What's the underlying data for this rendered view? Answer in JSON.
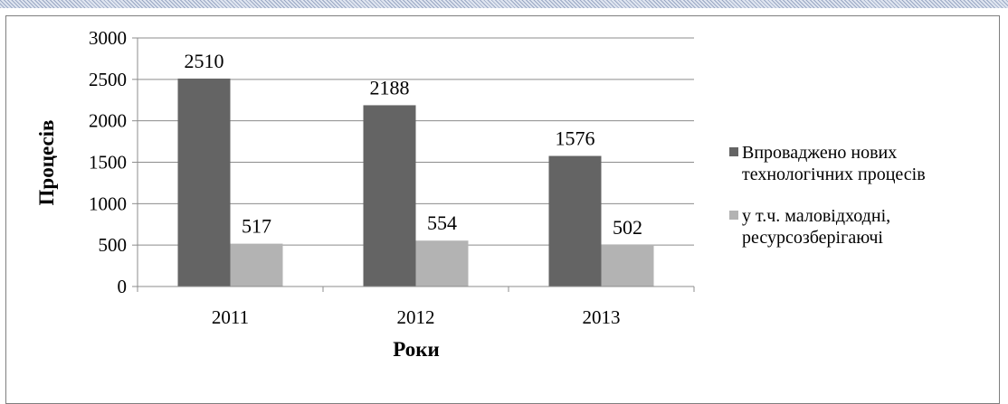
{
  "chart_data": {
    "type": "bar",
    "categories": [
      "2011",
      "2012",
      "2013"
    ],
    "series": [
      {
        "name": "Впроваджено нових технологічних процесів",
        "name_lines": [
          "Впроваджено нових",
          "технологічних процесів"
        ],
        "values": [
          2510,
          2188,
          1576
        ],
        "color": "#646464"
      },
      {
        "name": "у т.ч. маловідходні, ресурсозберігаючі",
        "name_lines": [
          "у т.ч. маловідходні,",
          "ресурсозберігаючі"
        ],
        "values": [
          517,
          554,
          502
        ],
        "color": "#b3b3b3"
      }
    ],
    "title": "",
    "xlabel": "Роки",
    "ylabel": "Процесів",
    "ylim": [
      0,
      3000
    ],
    "yticks": [
      0,
      500,
      1000,
      1500,
      2000,
      2500,
      3000
    ],
    "grid": true,
    "legend": "right"
  }
}
